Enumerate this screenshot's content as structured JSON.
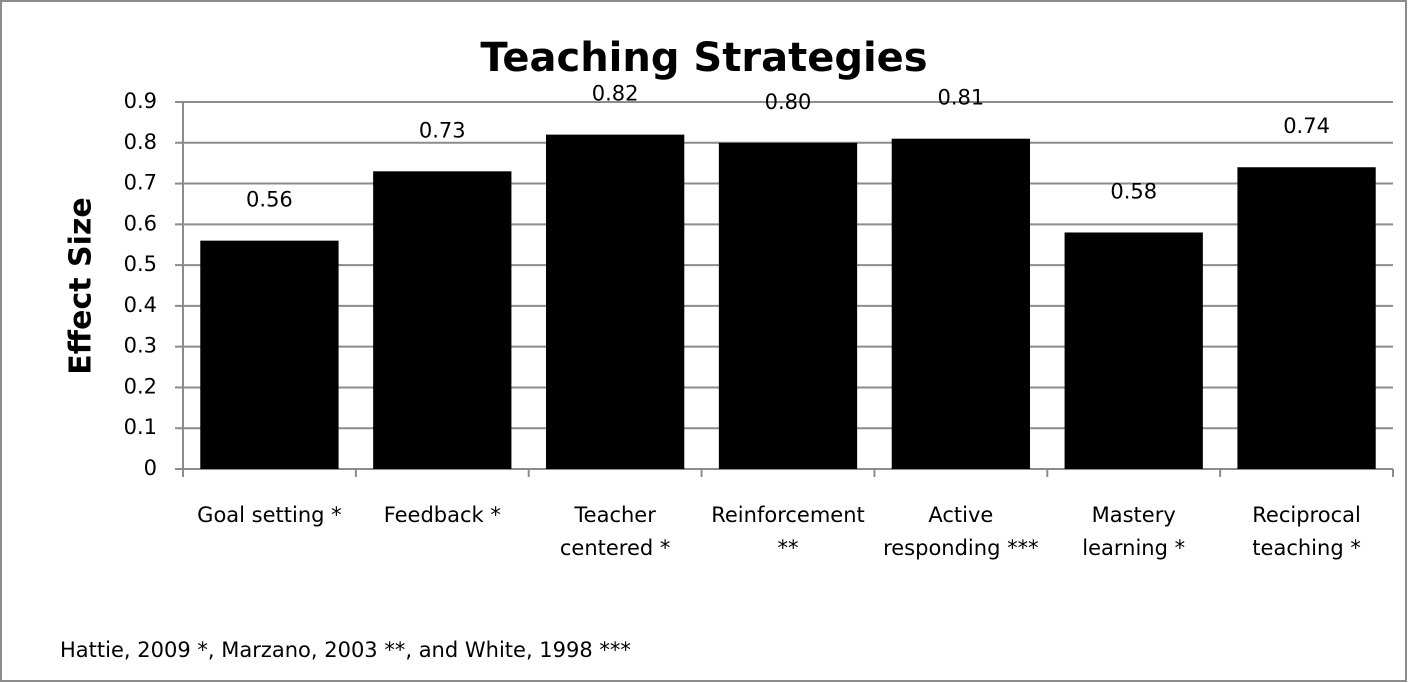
{
  "chart_data": {
    "type": "bar",
    "title": "Teaching Strategies",
    "y_label": "Effect Size",
    "categories": [
      "Goal setting *",
      "Feedback *",
      "Teacher centered *",
      "Reinforcement **",
      "Active responding ***",
      "Mastery learning *",
      "Reciprocal teaching *"
    ],
    "values": [
      0.56,
      0.73,
      0.82,
      0.8,
      0.81,
      0.58,
      0.74
    ],
    "value_labels": [
      "0.56",
      "0.73",
      "0.82",
      "0.80",
      "0.81",
      "0.58",
      "0.74"
    ],
    "color": "#000000",
    "ylim": [
      0,
      0.9
    ],
    "yticks": [
      0,
      0.1,
      0.2,
      0.3,
      0.4,
      0.5,
      0.6,
      0.7,
      0.8,
      0.9
    ],
    "grid": true,
    "footnote": "Hattie, 2009 *,  Marzano, 2003 **, and  White, 1998 ***"
  }
}
